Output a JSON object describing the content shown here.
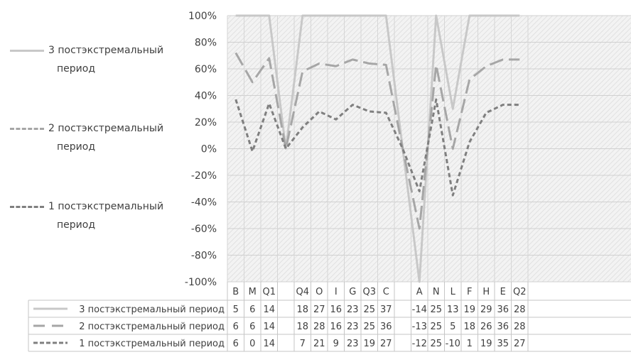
{
  "chart_data": {
    "type": "line",
    "categories": [
      "B",
      "M",
      "Q1",
      "",
      "Q4",
      "O",
      "I",
      "G",
      "Q3",
      "C",
      "",
      "A",
      "N",
      "L",
      "F",
      "H",
      "E",
      "Q2"
    ],
    "y_tick_labels": [
      "100%",
      "80%",
      "60%",
      "40%",
      "20%",
      "0%",
      "-20%",
      "-40%",
      "-60%",
      "-80%",
      "-100%"
    ],
    "ylim": [
      -100,
      100
    ],
    "grid": true,
    "legend_position": "left",
    "series": [
      {
        "name": "3 постэкстремальный период",
        "legend_lines": [
          "3 постэкстремальный",
          "период"
        ],
        "style": "solid",
        "color": "#c8c8c8",
        "values": [
          100,
          100,
          100,
          0,
          100,
          100,
          100,
          100,
          100,
          100,
          0,
          -100,
          100,
          30,
          100,
          100,
          100,
          100
        ],
        "table_values": [
          "5",
          "6",
          "14",
          "",
          "18",
          "27",
          "16",
          "23",
          "25",
          "37",
          "",
          "-14",
          "25",
          "13",
          "19",
          "29",
          "36",
          "28"
        ]
      },
      {
        "name": "2 постэкстремальный период",
        "legend_lines": [
          "2 постэкстремальный",
          "период"
        ],
        "style": "long-dash",
        "color": "#a6a6a6",
        "values": [
          72,
          50,
          68,
          0,
          58,
          64,
          62,
          67,
          64,
          63,
          0,
          -60,
          63,
          0,
          52,
          62,
          67,
          67
        ],
        "table_values": [
          "6",
          "6",
          "14",
          "",
          "18",
          "28",
          "16",
          "23",
          "25",
          "36",
          "",
          "-13",
          "25",
          "5",
          "18",
          "26",
          "36",
          "28"
        ]
      },
      {
        "name": "1 постэкстремальный период",
        "legend_lines": [
          "1 постэкстремальный",
          "период"
        ],
        "style": "short-dash",
        "color": "#7f7f7f",
        "values": [
          37,
          -2,
          34,
          0,
          16,
          28,
          22,
          33,
          28,
          27,
          0,
          -32,
          37,
          -35,
          5,
          27,
          33,
          33
        ],
        "table_values": [
          "6",
          "0",
          "14",
          "",
          "7",
          "21",
          "9",
          "23",
          "19",
          "27",
          "",
          "-12",
          "25",
          "-10",
          "1",
          "19",
          "35",
          "27"
        ]
      }
    ]
  }
}
